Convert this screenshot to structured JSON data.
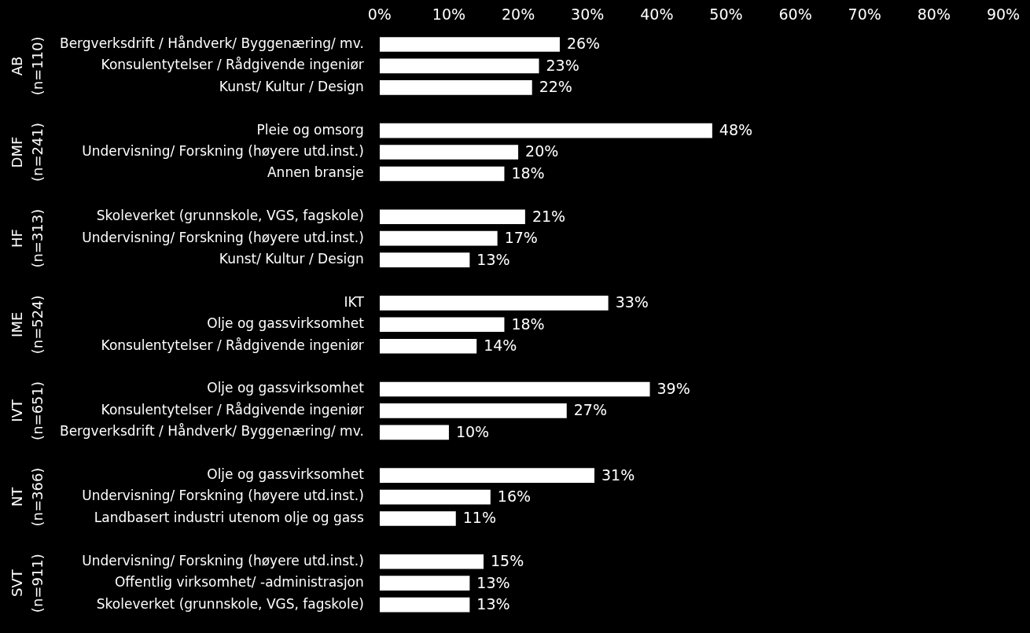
{
  "chart_data": {
    "type": "bar",
    "orientation": "horizontal",
    "color": "#ffffff",
    "data_labels": true,
    "grid": false,
    "xlim": [
      0,
      90
    ],
    "xticks": [
      {
        "value": 0,
        "label": "0%"
      },
      {
        "value": 10,
        "label": "10%"
      },
      {
        "value": 20,
        "label": "20%"
      },
      {
        "value": 30,
        "label": "30%"
      },
      {
        "value": 40,
        "label": "40%"
      },
      {
        "value": 50,
        "label": "50%"
      },
      {
        "value": 60,
        "label": "60%"
      },
      {
        "value": 70,
        "label": "70%"
      },
      {
        "value": 80,
        "label": "80%"
      },
      {
        "value": 90,
        "label": "90%"
      }
    ],
    "groups": [
      {
        "name": "AB",
        "n_label": "(n=110)",
        "categories": [
          "Bergverksdrift / Håndverk/ Byggenæring/ mv.",
          "Konsulentytelser / Rådgivende ingeniør",
          "Kunst/ Kultur / Design"
        ],
        "values": [
          26,
          23,
          22
        ],
        "value_labels": [
          "26%",
          "23%",
          "22%"
        ]
      },
      {
        "name": "DMF",
        "n_label": "(n=241)",
        "categories": [
          "Pleie og omsorg",
          "Undervisning/ Forskning (høyere utd.inst.)",
          "Annen bransje"
        ],
        "values": [
          48,
          20,
          18
        ],
        "value_labels": [
          "48%",
          "20%",
          "18%"
        ]
      },
      {
        "name": "HF",
        "n_label": "(n=313)",
        "categories": [
          "Skoleverket (grunnskole, VGS, fagskole)",
          "Undervisning/ Forskning (høyere utd.inst.)",
          "Kunst/ Kultur / Design"
        ],
        "values": [
          21,
          17,
          13
        ],
        "value_labels": [
          "21%",
          "17%",
          "13%"
        ]
      },
      {
        "name": "IME",
        "n_label": "(n=524)",
        "categories": [
          "IKT",
          "Olje og gassvirksomhet",
          "Konsulentytelser / Rådgivende ingeniør"
        ],
        "values": [
          33,
          18,
          14
        ],
        "value_labels": [
          "33%",
          "18%",
          "14%"
        ]
      },
      {
        "name": "IVT",
        "n_label": "(n=651)",
        "categories": [
          "Olje og gassvirksomhet",
          "Konsulentytelser / Rådgivende ingeniør",
          "Bergverksdrift / Håndverk/ Byggenæring/ mv."
        ],
        "values": [
          39,
          27,
          10
        ],
        "value_labels": [
          "39%",
          "27%",
          "10%"
        ]
      },
      {
        "name": "NT",
        "n_label": "(n=366)",
        "categories": [
          "Olje og gassvirksomhet",
          "Undervisning/ Forskning (høyere utd.inst.)",
          "Landbasert industri utenom olje og gass"
        ],
        "values": [
          31,
          16,
          11
        ],
        "value_labels": [
          "31%",
          "16%",
          "11%"
        ]
      },
      {
        "name": "SVT",
        "n_label": "(n=911)",
        "categories": [
          "Undervisning/ Forskning (høyere utd.inst.)",
          "Offentlig virksomhet/ -administrasjon",
          "Skoleverket (grunnskole, VGS, fagskole)"
        ],
        "values": [
          15,
          13,
          13
        ],
        "value_labels": [
          "15%",
          "13%",
          "13%"
        ]
      }
    ]
  }
}
